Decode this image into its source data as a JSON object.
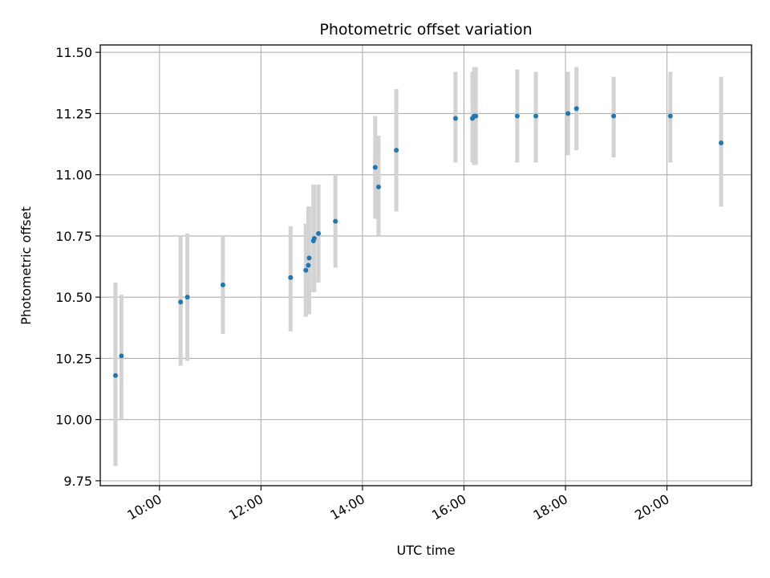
{
  "chart_data": {
    "type": "scatter",
    "title": "Photometric offset variation",
    "xlabel": "UTC time",
    "ylabel": "Photometric offset",
    "x_tick_labels": [
      "10:00",
      "12:00",
      "14:00",
      "16:00",
      "18:00",
      "20:00"
    ],
    "y_tick_labels": [
      "9.75",
      "10.00",
      "10.25",
      "10.50",
      "10.75",
      "11.00",
      "11.25",
      "11.50"
    ],
    "x_ticks": [
      "10:00",
      "12:00",
      "14:00",
      "16:00",
      "18:00",
      "20:00"
    ],
    "y_ticks": [
      9.75,
      10.0,
      10.25,
      10.5,
      10.75,
      11.0,
      11.25,
      11.5
    ],
    "xlim": [
      "08:50",
      "21:40"
    ],
    "ylim": [
      9.73,
      11.53
    ],
    "grid": true,
    "marker_color": "#1f77b4",
    "errorbar_color": "#d3d3d3",
    "points": [
      {
        "x": "09:08",
        "y": 10.18,
        "ylo": 9.81,
        "yhi": 10.56
      },
      {
        "x": "09:15",
        "y": 10.26,
        "ylo": 10.0,
        "yhi": 10.51
      },
      {
        "x": "10:25",
        "y": 10.48,
        "ylo": 10.22,
        "yhi": 10.75
      },
      {
        "x": "10:33",
        "y": 10.5,
        "ylo": 10.24,
        "yhi": 10.76
      },
      {
        "x": "11:15",
        "y": 10.55,
        "ylo": 10.35,
        "yhi": 10.75
      },
      {
        "x": "12:35",
        "y": 10.58,
        "ylo": 10.36,
        "yhi": 10.79
      },
      {
        "x": "12:53",
        "y": 10.61,
        "ylo": 10.42,
        "yhi": 10.8
      },
      {
        "x": "12:56",
        "y": 10.63,
        "ylo": 10.43,
        "yhi": 10.87
      },
      {
        "x": "12:57",
        "y": 10.66,
        "ylo": 10.43,
        "yhi": 10.87
      },
      {
        "x": "13:02",
        "y": 10.73,
        "ylo": 10.52,
        "yhi": 10.96
      },
      {
        "x": "13:03",
        "y": 10.74,
        "ylo": 10.52,
        "yhi": 10.96
      },
      {
        "x": "13:08",
        "y": 10.76,
        "ylo": 10.56,
        "yhi": 10.96
      },
      {
        "x": "13:28",
        "y": 10.81,
        "ylo": 10.62,
        "yhi": 11.0
      },
      {
        "x": "14:15",
        "y": 11.03,
        "ylo": 10.82,
        "yhi": 11.24
      },
      {
        "x": "14:19",
        "y": 10.95,
        "ylo": 10.75,
        "yhi": 11.16
      },
      {
        "x": "14:40",
        "y": 11.1,
        "ylo": 10.85,
        "yhi": 11.35
      },
      {
        "x": "15:50",
        "y": 11.23,
        "ylo": 11.05,
        "yhi": 11.42
      },
      {
        "x": "16:10",
        "y": 11.23,
        "ylo": 11.05,
        "yhi": 11.42
      },
      {
        "x": "16:12",
        "y": 11.24,
        "ylo": 11.04,
        "yhi": 11.44
      },
      {
        "x": "16:14",
        "y": 11.24,
        "ylo": 11.04,
        "yhi": 11.44
      },
      {
        "x": "17:03",
        "y": 11.24,
        "ylo": 11.05,
        "yhi": 11.43
      },
      {
        "x": "17:25",
        "y": 11.24,
        "ylo": 11.05,
        "yhi": 11.42
      },
      {
        "x": "18:03",
        "y": 11.25,
        "ylo": 11.08,
        "yhi": 11.42
      },
      {
        "x": "18:13",
        "y": 11.27,
        "ylo": 11.1,
        "yhi": 11.44
      },
      {
        "x": "18:57",
        "y": 11.24,
        "ylo": 11.07,
        "yhi": 11.4
      },
      {
        "x": "20:04",
        "y": 11.24,
        "ylo": 11.05,
        "yhi": 11.42
      },
      {
        "x": "21:04",
        "y": 11.13,
        "ylo": 10.87,
        "yhi": 11.4
      }
    ]
  }
}
